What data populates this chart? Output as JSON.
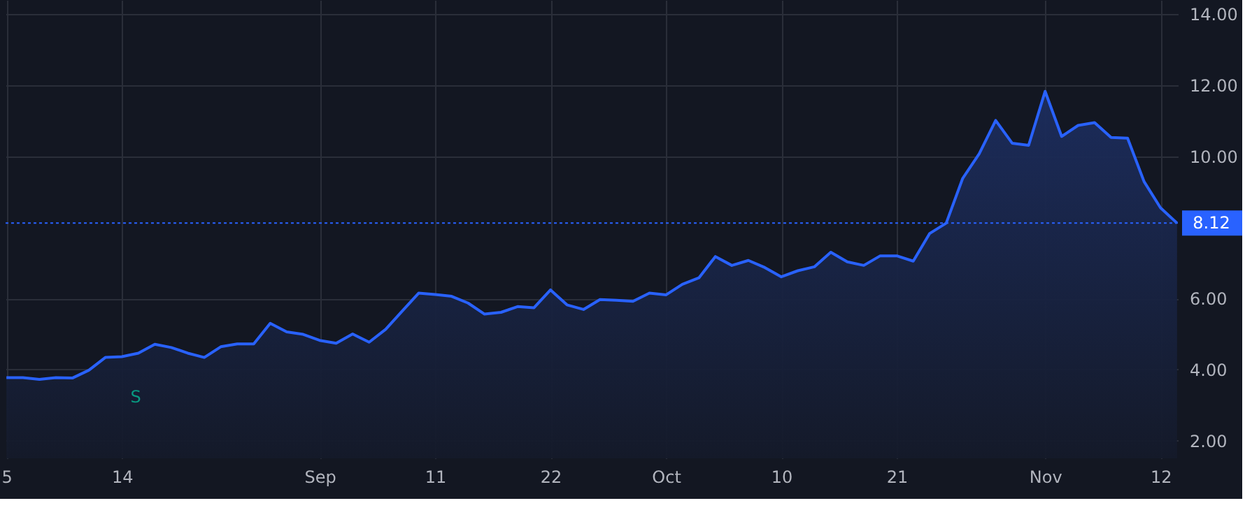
{
  "chart_data": {
    "type": "area",
    "categories": [
      "5",
      null,
      null,
      null,
      null,
      null,
      null,
      "14",
      null,
      null,
      null,
      null,
      null,
      null,
      null,
      null,
      null,
      null,
      null,
      "Sep",
      null,
      null,
      null,
      null,
      null,
      null,
      "11",
      null,
      null,
      null,
      null,
      null,
      null,
      "22",
      null,
      null,
      null,
      null,
      null,
      null,
      "Oct",
      null,
      null,
      null,
      null,
      null,
      null,
      "10",
      null,
      null,
      null,
      null,
      null,
      null,
      "21",
      null,
      null,
      null,
      null,
      null,
      null,
      null,
      null,
      "Nov",
      null,
      null,
      null,
      null,
      null,
      null,
      "12",
      null
    ],
    "series": [
      {
        "color": "#2962ff",
        "values": [
          3.77,
          3.77,
          3.72,
          3.77,
          3.76,
          3.98,
          4.34,
          4.36,
          4.46,
          4.71,
          4.62,
          4.46,
          4.34,
          4.64,
          4.72,
          4.72,
          5.3,
          5.06,
          4.99,
          4.82,
          4.74,
          5.0,
          4.77,
          5.13,
          5.64,
          6.15,
          6.11,
          6.06,
          5.87,
          5.56,
          5.61,
          5.77,
          5.74,
          6.24,
          5.82,
          5.69,
          5.97,
          5.95,
          5.92,
          6.15,
          6.1,
          6.4,
          6.58,
          7.18,
          6.93,
          7.07,
          6.87,
          6.61,
          6.78,
          6.89,
          7.3,
          7.03,
          6.93,
          7.2,
          7.2,
          7.05,
          7.83,
          8.12,
          9.38,
          10.07,
          11.01,
          10.37,
          10.31,
          11.83,
          10.56,
          10.87,
          10.95,
          10.53,
          10.51,
          9.29,
          8.55,
          8.12
        ]
      }
    ],
    "ylim": [
      1.5,
      14.4
    ],
    "yticks": [
      {
        "value": 2,
        "label": "2.00"
      },
      {
        "value": 4,
        "label": "4.00"
      },
      {
        "value": 6,
        "label": "6.00"
      },
      {
        "value": 10,
        "label": "10.00"
      },
      {
        "value": 12,
        "label": "12.00"
      },
      {
        "value": 14,
        "label": "14.00"
      }
    ],
    "ref_lines": [
      {
        "axis": "y",
        "value": 8.12,
        "label": "8.12",
        "color": "#2962ff",
        "line_style": "dotted"
      }
    ],
    "annotations": [
      "S"
    ],
    "grid": true,
    "line_style": "solid",
    "marker": "none"
  }
}
